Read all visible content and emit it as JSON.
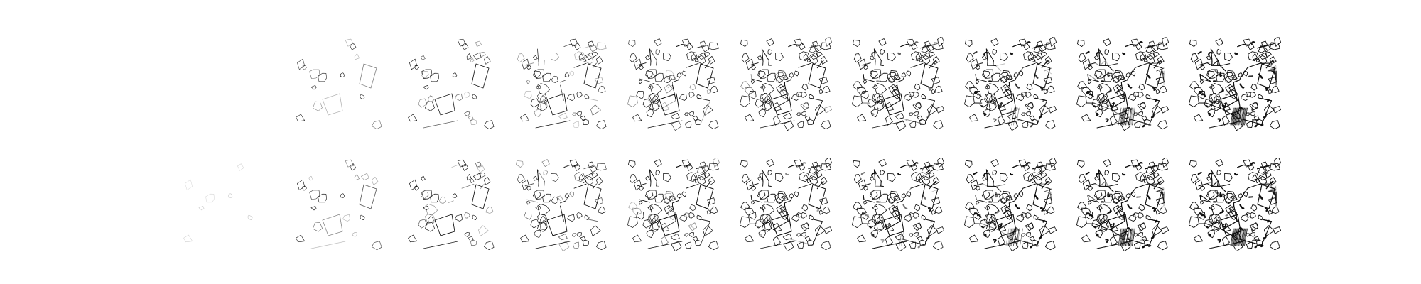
{
  "figure": {
    "rows": 2,
    "columns": 10,
    "background_color": "#ffffff",
    "ink_color": "#111111",
    "panel_progress": [
      [
        0.0,
        0.15,
        0.25,
        0.36,
        0.47,
        0.58,
        0.69,
        0.8,
        0.9,
        1.0
      ],
      [
        0.06,
        0.18,
        0.3,
        0.42,
        0.54,
        0.66,
        0.76,
        0.86,
        0.94,
        1.0
      ]
    ],
    "row_blur": [
      0,
      1
    ]
  }
}
